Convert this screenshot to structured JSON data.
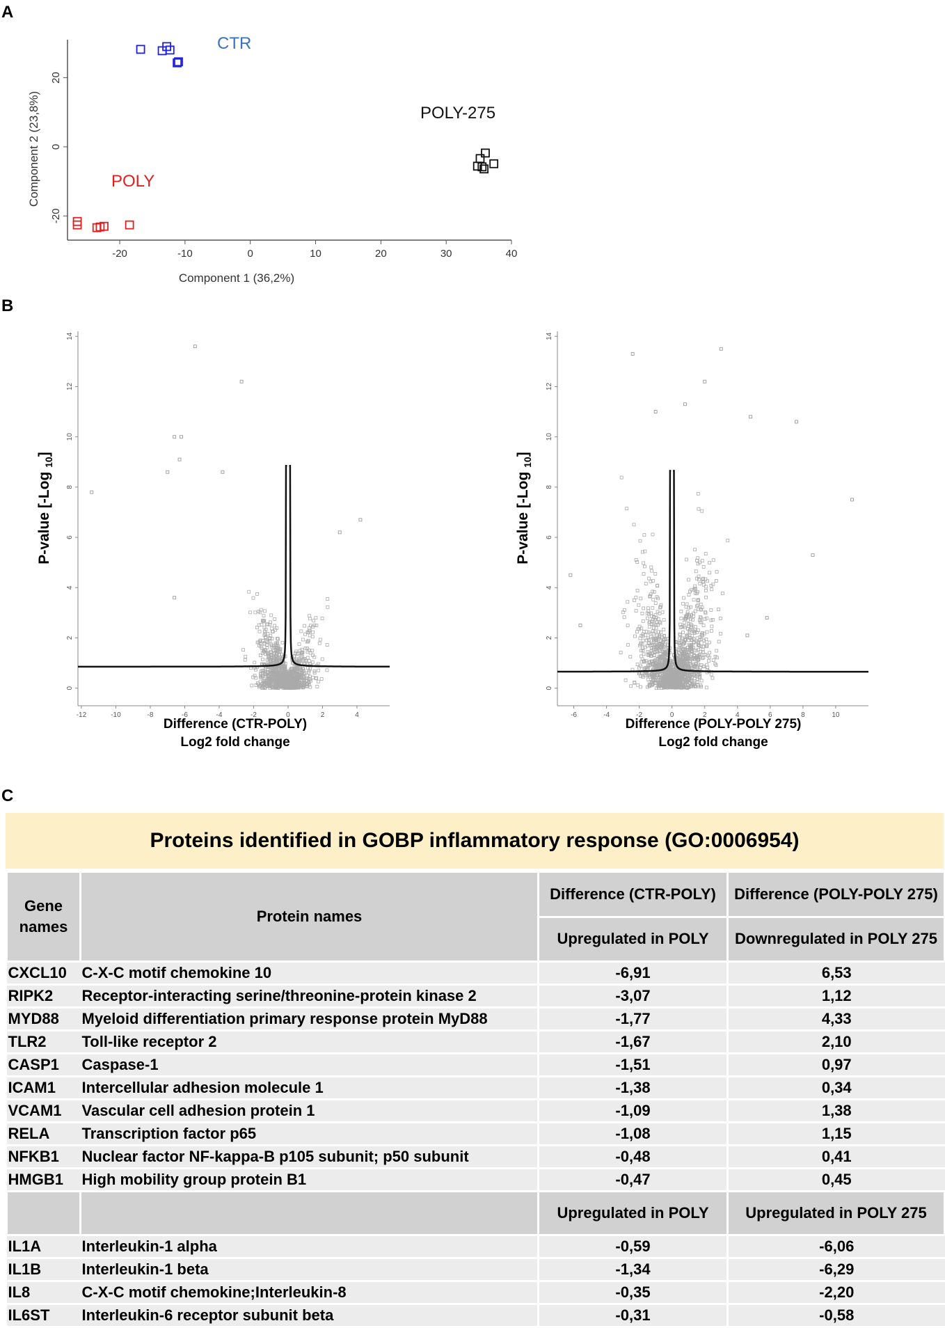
{
  "panels": {
    "a": "A",
    "b": "B",
    "c": "C"
  },
  "pca": {
    "xlabel": "Component 1 (36,2%)",
    "ylabel": "Component 2 (23,8%)",
    "xticks": [
      "-20",
      "-10",
      "0",
      "10",
      "20",
      "30",
      "40"
    ],
    "yticks": [
      "20",
      "0",
      "-20"
    ],
    "groups": {
      "ctr": "CTR",
      "poly": "POLY",
      "poly275": "POLY-275"
    }
  },
  "volcano_left": {
    "ylabel_main": "P-value [-Log ",
    "ylabel_sub": "10",
    "ylabel_end": "]",
    "xlabel_line1": "Difference (CTR-POLY)",
    "xlabel_line2": "Log2 fold change",
    "xticks": [
      "-12",
      "-10",
      "-8",
      "-6",
      "-4",
      "-2",
      "0",
      "2",
      "4"
    ],
    "yticks": [
      "14",
      "12",
      "10",
      "8",
      "6",
      "4",
      "2",
      "0"
    ]
  },
  "volcano_right": {
    "ylabel_main": "P-value [-Log ",
    "ylabel_sub": "10",
    "ylabel_end": "]",
    "xlabel_line1": "Difference (POLY-POLY 275)",
    "xlabel_line2": "Log2 fold change",
    "xticks": [
      "-6",
      "-4",
      "-2",
      "0",
      "2",
      "4",
      "6",
      "8",
      "10"
    ],
    "yticks": [
      "14",
      "12",
      "10",
      "8",
      "6",
      "4",
      "2",
      "0"
    ]
  },
  "chart_data": [
    {
      "type": "scatter",
      "title": "",
      "xlabel": "Component 1 (36,2%)",
      "ylabel": "Component 2 (23,8%)",
      "xlim": [
        -28,
        40
      ],
      "ylim": [
        -27,
        31
      ],
      "series": [
        {
          "name": "CTR",
          "color": "#1f1fdf",
          "points": [
            [
              -16.8,
              28.2
            ],
            [
              -13.5,
              27.8
            ],
            [
              -12.8,
              29.0
            ],
            [
              -12.3,
              28.0
            ],
            [
              -11.0,
              24.6
            ],
            [
              -11.2,
              24.3
            ]
          ]
        },
        {
          "name": "POLY",
          "color": "#e02020",
          "points": [
            [
              -26.5,
              -21.6
            ],
            [
              -26.5,
              -22.6
            ],
            [
              -23.5,
              -23.4
            ],
            [
              -23.0,
              -23.2
            ],
            [
              -22.4,
              -23.0
            ],
            [
              -18.5,
              -22.6
            ]
          ]
        },
        {
          "name": "POLY-275",
          "color": "#111111",
          "points": [
            [
              35.2,
              -3.4
            ],
            [
              36.0,
              -1.8
            ],
            [
              37.3,
              -4.9
            ],
            [
              35.5,
              -5.8
            ],
            [
              35.8,
              -6.4
            ],
            [
              34.8,
              -5.6
            ]
          ]
        }
      ]
    },
    {
      "type": "scatter",
      "title": "",
      "xlabel": "Difference (CTR-POLY) Log2 fold change",
      "ylabel": "P-value [-Log 10]",
      "xlim": [
        -12.2,
        5.9
      ],
      "ylim": [
        -0.7,
        14.2
      ],
      "notable_points": [
        [
          -11.4,
          7.8
        ],
        [
          -5.4,
          13.6
        ],
        [
          -2.7,
          12.2
        ],
        [
          -6.6,
          10.0
        ],
        [
          -6.2,
          10.0
        ],
        [
          -6.3,
          9.1
        ],
        [
          -7.0,
          8.6
        ],
        [
          -3.8,
          8.6
        ],
        [
          -6.6,
          3.6
        ],
        [
          4.2,
          6.7
        ],
        [
          3.0,
          6.2
        ]
      ],
      "threshold": "significance curve (s0)"
    },
    {
      "type": "scatter",
      "title": "",
      "xlabel": "Difference (POLY-POLY 275) Log2 fold change",
      "ylabel": "P-value [-Log 10]",
      "xlim": [
        -7.0,
        12.0
      ],
      "ylim": [
        -0.7,
        14.2
      ],
      "notable_points": [
        [
          -2.4,
          13.3
        ],
        [
          3.0,
          13.5
        ],
        [
          2.0,
          12.2
        ],
        [
          -1.0,
          11.0
        ],
        [
          0.8,
          11.3
        ],
        [
          4.8,
          10.8
        ],
        [
          7.6,
          10.6
        ],
        [
          11.0,
          7.5
        ],
        [
          8.6,
          5.3
        ],
        [
          -6.2,
          4.5
        ],
        [
          -5.6,
          2.5
        ],
        [
          5.8,
          2.8
        ],
        [
          4.6,
          2.1
        ]
      ],
      "threshold": "significance curve (s0)"
    }
  ],
  "table": {
    "title": "Proteins identified in GOBP inflammatory response (GO:0006954)",
    "header": {
      "gene": "Gene names",
      "protein": "Protein names",
      "diff1": "Difference (CTR-POLY)",
      "diff2": "Difference (POLY-POLY 275)",
      "sub1": "Upregulated in POLY",
      "sub2": "Downregulated in POLY 275"
    },
    "rows1": [
      {
        "gene": "CXCL10",
        "name": "C-X-C motif chemokine 10",
        "v1": "-6,91",
        "v2": "6,53"
      },
      {
        "gene": "RIPK2",
        "name": "Receptor-interacting serine/threonine-protein kinase 2",
        "v1": "-3,07",
        "v2": "1,12"
      },
      {
        "gene": "MYD88",
        "name": "Myeloid differentiation primary response protein MyD88",
        "v1": "-1,77",
        "v2": "4,33"
      },
      {
        "gene": "TLR2",
        "name": "Toll-like receptor 2",
        "v1": "-1,67",
        "v2": "2,10"
      },
      {
        "gene": "CASP1",
        "name": "Caspase-1",
        "v1": "-1,51",
        "v2": "0,97"
      },
      {
        "gene": "ICAM1",
        "name": "Intercellular adhesion molecule 1",
        "v1": "-1,38",
        "v2": "0,34"
      },
      {
        "gene": "VCAM1",
        "name": "Vascular cell adhesion protein 1",
        "v1": "-1,09",
        "v2": "1,38"
      },
      {
        "gene": "RELA",
        "name": "Transcription factor p65",
        "v1": "-1,08",
        "v2": "1,15"
      },
      {
        "gene": "NFKB1",
        "name": "Nuclear factor NF-kappa-B p105 subunit; p50 subunit",
        "v1": "-0,48",
        "v2": "0,41"
      },
      {
        "gene": "HMGB1",
        "name": "High mobility group protein B1",
        "v1": "-0,47",
        "v2": "0,45"
      }
    ],
    "sub2_header": {
      "c1": "Upregulated in POLY",
      "c2": "Upregulated in POLY 275"
    },
    "rows2": [
      {
        "gene": "IL1A",
        "name": "Interleukin-1 alpha",
        "v1": "-0,59",
        "v2": "-6,06"
      },
      {
        "gene": "IL1B",
        "name": "Interleukin-1 beta",
        "v1": "-1,34",
        "v2": "-6,29"
      },
      {
        "gene": "IL8",
        "name": "C-X-C motif chemokine;Interleukin-8",
        "v1": "-0,35",
        "v2": "-2,20"
      },
      {
        "gene": "IL6ST",
        "name": "Interleukin-6 receptor subunit beta",
        "v1": "-0,31",
        "v2": "-0,58"
      }
    ]
  }
}
